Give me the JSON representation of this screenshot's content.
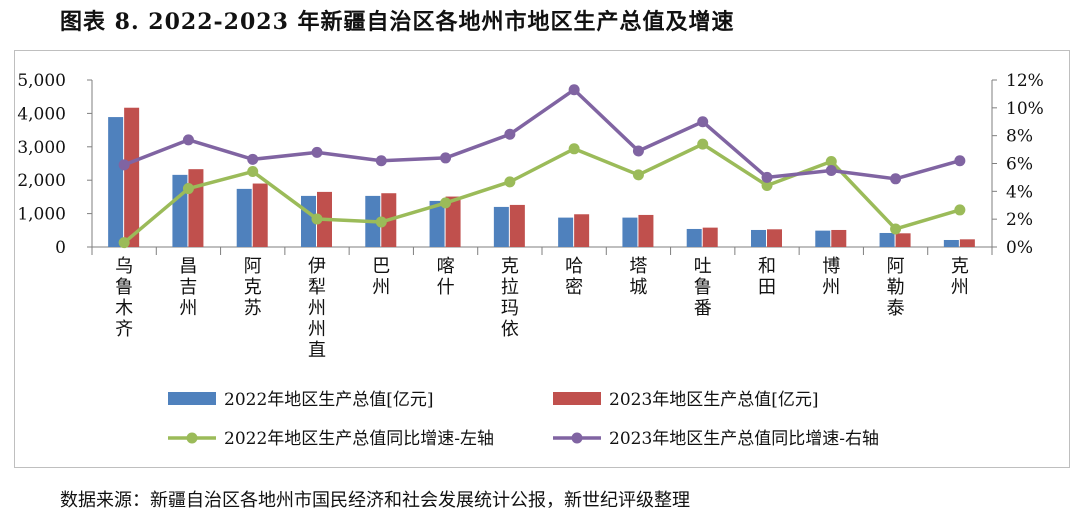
{
  "header": {
    "title": "图表 8. 2022-2023 年新疆自治区各地州市地区生产总值及增速"
  },
  "footer": {
    "source": "数据来源：新疆自治区各地州市国民经济和社会发展统计公报，新世纪评级整理"
  },
  "chart_data": {
    "type": "bar",
    "categories": [
      "乌鲁木齐",
      "昌吉州",
      "阿克苏",
      "伊犁州州直",
      "巴州",
      "喀什",
      "克拉玛依",
      "哈密",
      "塔城",
      "吐鲁番",
      "和田",
      "博州",
      "阿勒泰",
      "克州"
    ],
    "series": [
      {
        "name": "2022年地区生产总值[亿元]",
        "type": "bar",
        "axis": "left",
        "color": "#4f81bd",
        "values": [
          3890,
          2160,
          1740,
          1530,
          1530,
          1380,
          1200,
          880,
          880,
          540,
          510,
          490,
          420,
          210
        ]
      },
      {
        "name": "2023年地区生产总值[亿元]",
        "type": "bar",
        "axis": "left",
        "color": "#c0504d",
        "values": [
          4170,
          2330,
          1900,
          1650,
          1610,
          1510,
          1260,
          980,
          960,
          580,
          530,
          510,
          410,
          230
        ]
      },
      {
        "name": "2022年地区生产总值同比增速-左轴",
        "type": "line",
        "axis": "left",
        "color": "#9bbb59",
        "values": [
          130,
          1750,
          2260,
          840,
          750,
          1320,
          1950,
          2940,
          2160,
          3080,
          1840,
          2560,
          540,
          1110
        ]
      },
      {
        "name": "2023年地区生产总值同比增速-右轴",
        "type": "line",
        "axis": "right",
        "color": "#8064a2",
        "values": [
          5.9,
          7.7,
          6.3,
          6.8,
          6.2,
          6.4,
          8.1,
          11.3,
          6.9,
          9.0,
          5.0,
          5.5,
          4.9,
          6.2
        ]
      }
    ],
    "left_axis": {
      "ylim": [
        0,
        5000
      ],
      "ticks": [
        "0",
        "1,000",
        "2,000",
        "3,000",
        "4,000",
        "5,000"
      ]
    },
    "right_axis": {
      "ylim": [
        0,
        12
      ],
      "ticks": [
        "0%",
        "2%",
        "4%",
        "6%",
        "8%",
        "10%",
        "12%"
      ]
    },
    "legend_position": "bottom",
    "grid": false
  }
}
